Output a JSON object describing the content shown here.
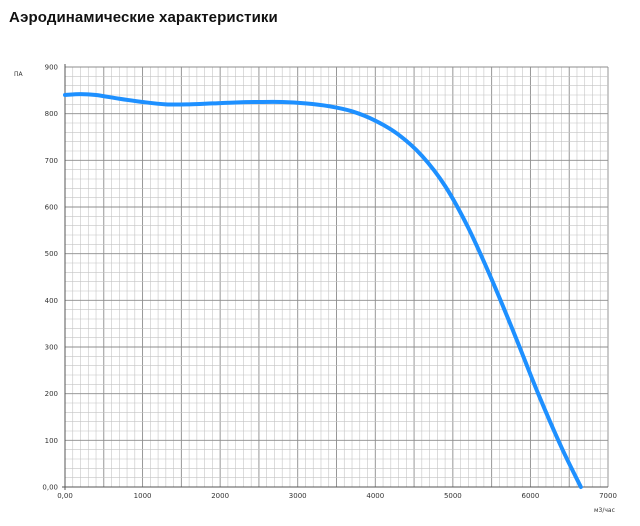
{
  "page": {
    "title": "Аэродинамические характеристики"
  },
  "chart_data": {
    "type": "line",
    "title": "Аэродинамические характеристики",
    "xlabel": "м3/час",
    "ylabel": "ПА",
    "xlim": [
      0,
      7000
    ],
    "ylim": [
      0,
      900
    ],
    "x_ticks": [
      0,
      1000,
      2000,
      3000,
      4000,
      5000,
      6000,
      7000
    ],
    "x_tick_labels": [
      "0,00",
      "1000",
      "2000",
      "3000",
      "4000",
      "5000",
      "6000",
      "7000"
    ],
    "y_ticks": [
      0,
      100,
      200,
      300,
      400,
      500,
      600,
      700,
      800,
      900
    ],
    "y_tick_labels": [
      "0,00",
      "100",
      "200",
      "300",
      "400",
      "500",
      "600",
      "700",
      "800",
      "900"
    ],
    "grid": true,
    "line_color": "#1E90FF",
    "series": [
      {
        "x": [
          0,
          200,
          400,
          700,
          1000,
          1300,
          1600,
          1900,
          2200,
          2500,
          2800,
          3100,
          3400,
          3700,
          4000,
          4300,
          4600,
          4900,
          5200,
          5500,
          5800,
          6100,
          6400,
          6650
        ],
        "y": [
          840,
          842,
          840,
          832,
          825,
          820,
          820,
          822,
          824,
          825,
          825,
          822,
          816,
          805,
          785,
          755,
          710,
          645,
          555,
          445,
          325,
          200,
          85,
          0
        ]
      }
    ]
  }
}
